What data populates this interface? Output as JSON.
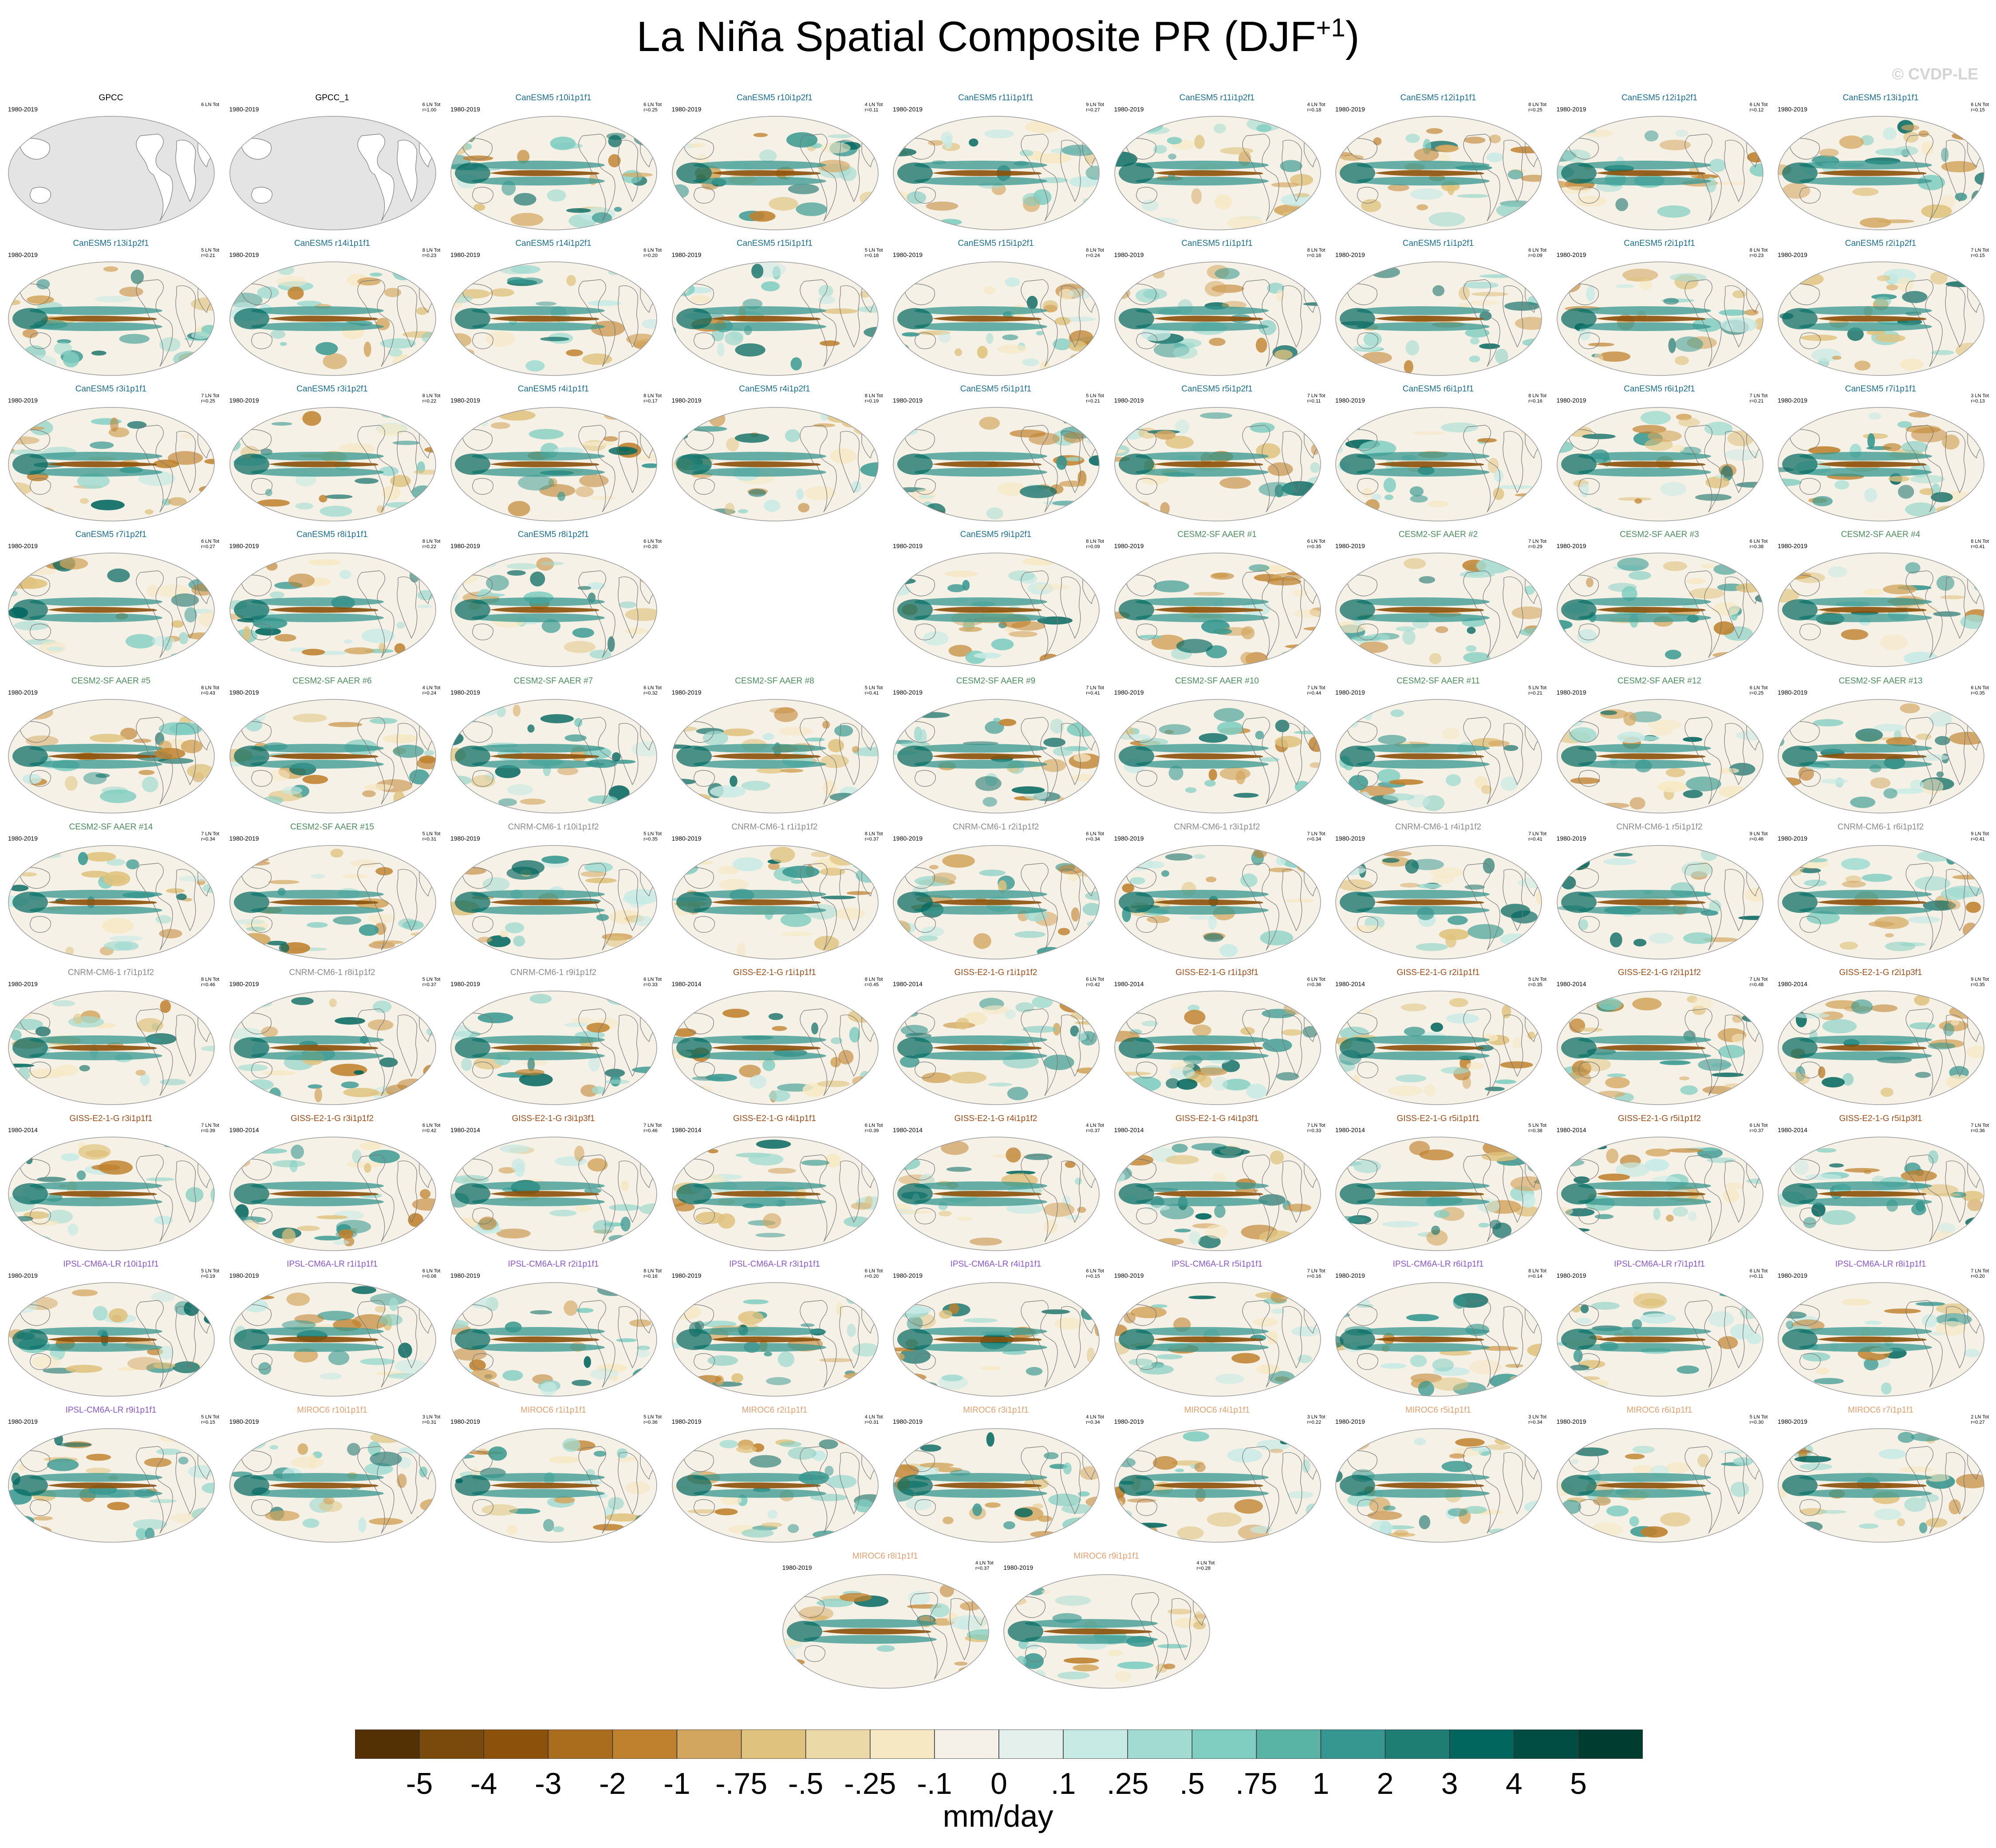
{
  "title": {
    "main": "La Niña Spatial Composite PR (DJF",
    "sup": "+1",
    "close": ")"
  },
  "watermark": "© CVDP-LE",
  "colorbar": {
    "units": "mm/day",
    "labels": [
      "-5",
      "-4",
      "-3",
      "-2",
      "-1",
      "-.75",
      "-.5",
      "-.25",
      "-.1",
      "0",
      ".1",
      ".25",
      ".5",
      ".75",
      "1",
      "2",
      "3",
      "4",
      "5"
    ],
    "colors": [
      "#543005",
      "#7a4a0c",
      "#8c510a",
      "#a96d1d",
      "#bf812d",
      "#d3a65f",
      "#dfc27d",
      "#ecd9a8",
      "#f6e8c3",
      "#f5f1e8",
      "#e3f0ec",
      "#c7eae5",
      "#a2dbd1",
      "#80cdc1",
      "#5ab4a6",
      "#35978f",
      "#1e7e74",
      "#01665e",
      "#014d44",
      "#003c30"
    ]
  },
  "models": {
    "GPCC": "#000000",
    "CanESM5": "#1b6e8e",
    "CESM2-SF AAER": "#4c8c5c",
    "CNRM-CM6-1": "#8a8a8a",
    "GISS-E2-1-G": "#9b4d1a",
    "IPSL-CM6A-LR": "#8a56c8",
    "MIROC6": "#e0a070"
  },
  "panels": [
    {
      "row": 0,
      "col": 0,
      "title": "GPCC",
      "model": "GPCC",
      "years": "1980-2019",
      "events": "6 LN Tot",
      "r": "",
      "obs": true
    },
    {
      "row": 0,
      "col": 1,
      "title": "GPCC_1",
      "model": "GPCC",
      "years": "1980-2019",
      "events": "6 LN Tot",
      "r": "r=1.00",
      "obs": true
    },
    {
      "row": 0,
      "col": 2,
      "title": "CanESM5 r10i1p1f1",
      "model": "CanESM5",
      "years": "1980-2019",
      "events": "6 LN Tot",
      "r": "r=0.25"
    },
    {
      "row": 0,
      "col": 3,
      "title": "CanESM5 r10i1p2f1",
      "model": "CanESM5",
      "years": "1980-2019",
      "events": "4 LN Tot",
      "r": "r=0.11"
    },
    {
      "row": 0,
      "col": 4,
      "title": "CanESM5 r11i1p1f1",
      "model": "CanESM5",
      "years": "1980-2019",
      "events": "9 LN Tot",
      "r": "r=0.27"
    },
    {
      "row": 0,
      "col": 5,
      "title": "CanESM5 r11i1p2f1",
      "model": "CanESM5",
      "years": "1980-2019",
      "events": "4 LN Tot",
      "r": "r=0.18"
    },
    {
      "row": 0,
      "col": 6,
      "title": "CanESM5 r12i1p1f1",
      "model": "CanESM5",
      "years": "1980-2019",
      "events": "8 LN Tot",
      "r": "r=0.25"
    },
    {
      "row": 0,
      "col": 7,
      "title": "CanESM5 r12i1p2f1",
      "model": "CanESM5",
      "years": "1980-2019",
      "events": "6 LN Tot",
      "r": "r=0.12"
    },
    {
      "row": 0,
      "col": 8,
      "title": "CanESM5 r13i1p1f1",
      "model": "CanESM5",
      "years": "1980-2019",
      "events": "6 LN Tot",
      "r": "r=0.15"
    },
    {
      "row": 1,
      "col": 0,
      "title": "CanESM5 r13i1p2f1",
      "model": "CanESM5",
      "years": "1980-2019",
      "events": "5 LN Tot",
      "r": "r=0.21"
    },
    {
      "row": 1,
      "col": 1,
      "title": "CanESM5 r14i1p1f1",
      "model": "CanESM5",
      "years": "1980-2019",
      "events": "8 LN Tot",
      "r": "r=0.23"
    },
    {
      "row": 1,
      "col": 2,
      "title": "CanESM5 r14i1p2f1",
      "model": "CanESM5",
      "years": "1980-2019",
      "events": "6 LN Tot",
      "r": "r=0.20"
    },
    {
      "row": 1,
      "col": 3,
      "title": "CanESM5 r15i1p1f1",
      "model": "CanESM5",
      "years": "1980-2019",
      "events": "5 LN Tot",
      "r": "r=0.18"
    },
    {
      "row": 1,
      "col": 4,
      "title": "CanESM5 r15i1p2f1",
      "model": "CanESM5",
      "years": "1980-2019",
      "events": "8 LN Tot",
      "r": "r=0.24"
    },
    {
      "row": 1,
      "col": 5,
      "title": "CanESM5 r1i1p1f1",
      "model": "CanESM5",
      "years": "1980-2019",
      "events": "8 LN Tot",
      "r": "r=0.16"
    },
    {
      "row": 1,
      "col": 6,
      "title": "CanESM5 r1i1p2f1",
      "model": "CanESM5",
      "years": "1980-2019",
      "events": "6 LN Tot",
      "r": "r=0.09"
    },
    {
      "row": 1,
      "col": 7,
      "title": "CanESM5 r2i1p1f1",
      "model": "CanESM5",
      "years": "1980-2019",
      "events": "8 LN Tot",
      "r": "r=0.23"
    },
    {
      "row": 1,
      "col": 8,
      "title": "CanESM5 r2i1p2f1",
      "model": "CanESM5",
      "years": "1980-2019",
      "events": "7 LN Tot",
      "r": "r=0.15"
    },
    {
      "row": 2,
      "col": 0,
      "title": "CanESM5 r3i1p1f1",
      "model": "CanESM5",
      "years": "1980-2019",
      "events": "7 LN Tot",
      "r": "r=0.25"
    },
    {
      "row": 2,
      "col": 1,
      "title": "CanESM5 r3i1p2f1",
      "model": "CanESM5",
      "years": "1980-2019",
      "events": "8 LN Tot",
      "r": "r=0.22"
    },
    {
      "row": 2,
      "col": 2,
      "title": "CanESM5 r4i1p1f1",
      "model": "CanESM5",
      "years": "1980-2019",
      "events": "8 LN Tot",
      "r": "r=0.17"
    },
    {
      "row": 2,
      "col": 3,
      "title": "CanESM5 r4i1p2f1",
      "model": "CanESM5",
      "years": "1980-2019",
      "events": "8 LN Tot",
      "r": "r=0.19"
    },
    {
      "row": 2,
      "col": 4,
      "title": "CanESM5 r5i1p1f1",
      "model": "CanESM5",
      "years": "1980-2019",
      "events": "5 LN Tot",
      "r": "r=0.21"
    },
    {
      "row": 2,
      "col": 5,
      "title": "CanESM5 r5i1p2f1",
      "model": "CanESM5",
      "years": "1980-2019",
      "events": "7 LN Tot",
      "r": "r=0.11"
    },
    {
      "row": 2,
      "col": 6,
      "title": "CanESM5 r6i1p1f1",
      "model": "CanESM5",
      "years": "1980-2019",
      "events": "8 LN Tot",
      "r": "r=0.16"
    },
    {
      "row": 2,
      "col": 7,
      "title": "CanESM5 r6i1p2f1",
      "model": "CanESM5",
      "years": "1980-2019",
      "events": "7 LN Tot",
      "r": "r=0.21"
    },
    {
      "row": 2,
      "col": 8,
      "title": "CanESM5 r7i1p1f1",
      "model": "CanESM5",
      "years": "1980-2019",
      "events": "3 LN Tot",
      "r": "r=0.13"
    },
    {
      "row": 3,
      "col": 0,
      "title": "CanESM5 r7i1p2f1",
      "model": "CanESM5",
      "years": "1980-2019",
      "events": "6 LN Tot",
      "r": "r=0.27"
    },
    {
      "row": 3,
      "col": 1,
      "title": "CanESM5 r8i1p1f1",
      "model": "CanESM5",
      "years": "1980-2019",
      "events": "8 LN Tot",
      "r": "r=0.22"
    },
    {
      "row": 3,
      "col": 2,
      "title": "CanESM5 r8i1p2f1",
      "model": "CanESM5",
      "years": "1980-2019",
      "events": "6 LN Tot",
      "r": "r=0.20"
    },
    {
      "row": 3,
      "col": 4,
      "title": "CanESM5 r9i1p2f1",
      "model": "CanESM5",
      "years": "1980-2019",
      "events": "8 LN Tot",
      "r": "r=0.09"
    },
    {
      "row": 3,
      "col": 5,
      "title": "CESM2-SF AAER #1",
      "model": "CESM2-SF AAER",
      "years": "1980-2019",
      "events": "6 LN Tot",
      "r": "r=0.35"
    },
    {
      "row": 3,
      "col": 6,
      "title": "CESM2-SF AAER #2",
      "model": "CESM2-SF AAER",
      "years": "1980-2019",
      "events": "7 LN Tot",
      "r": "r=0.29"
    },
    {
      "row": 3,
      "col": 7,
      "title": "CESM2-SF AAER #3",
      "model": "CESM2-SF AAER",
      "years": "1980-2019",
      "events": "6 LN Tot",
      "r": "r=0.38"
    },
    {
      "row": 3,
      "col": 8,
      "title": "CESM2-SF AAER #4",
      "model": "CESM2-SF AAER",
      "years": "1980-2019",
      "events": "8 LN Tot",
      "r": "r=0.41"
    },
    {
      "row": 4,
      "col": 0,
      "title": "CESM2-SF AAER #5",
      "model": "CESM2-SF AAER",
      "years": "1980-2019",
      "events": "8 LN Tot",
      "r": "r=0.43"
    },
    {
      "row": 4,
      "col": 1,
      "title": "CESM2-SF AAER #6",
      "model": "CESM2-SF AAER",
      "years": "1980-2019",
      "events": "4 LN Tot",
      "r": "r=0.24"
    },
    {
      "row": 4,
      "col": 2,
      "title": "CESM2-SF AAER #7",
      "model": "CESM2-SF AAER",
      "years": "1980-2019",
      "events": "6 LN Tot",
      "r": "r=0.32"
    },
    {
      "row": 4,
      "col": 3,
      "title": "CESM2-SF AAER #8",
      "model": "CESM2-SF AAER",
      "years": "1980-2019",
      "events": "5 LN Tot",
      "r": "r=0.41"
    },
    {
      "row": 4,
      "col": 4,
      "title": "CESM2-SF AAER #9",
      "model": "CESM2-SF AAER",
      "years": "1980-2019",
      "events": "7 LN Tot",
      "r": "r=0.41"
    },
    {
      "row": 4,
      "col": 5,
      "title": "CESM2-SF AAER #10",
      "model": "CESM2-SF AAER",
      "years": "1980-2019",
      "events": "7 LN Tot",
      "r": "r=0.44"
    },
    {
      "row": 4,
      "col": 6,
      "title": "CESM2-SF AAER #11",
      "model": "CESM2-SF AAER",
      "years": "1980-2019",
      "events": "5 LN Tot",
      "r": "r=0.21"
    },
    {
      "row": 4,
      "col": 7,
      "title": "CESM2-SF AAER #12",
      "model": "CESM2-SF AAER",
      "years": "1980-2019",
      "events": "6 LN Tot",
      "r": "r=0.25"
    },
    {
      "row": 4,
      "col": 8,
      "title": "CESM2-SF AAER #13",
      "model": "CESM2-SF AAER",
      "years": "1980-2019",
      "events": "6 LN Tot",
      "r": "r=0.35"
    },
    {
      "row": 5,
      "col": 0,
      "title": "CESM2-SF AAER #14",
      "model": "CESM2-SF AAER",
      "years": "1980-2019",
      "events": "7 LN Tot",
      "r": "r=0.34"
    },
    {
      "row": 5,
      "col": 1,
      "title": "CESM2-SF AAER #15",
      "model": "CESM2-SF AAER",
      "years": "1980-2019",
      "events": "5 LN Tot",
      "r": "r=0.31"
    },
    {
      "row": 5,
      "col": 2,
      "title": "CNRM-CM6-1 r10i1p1f2",
      "model": "CNRM-CM6-1",
      "years": "1980-2019",
      "events": "5 LN Tot",
      "r": "r=0.35"
    },
    {
      "row": 5,
      "col": 3,
      "title": "CNRM-CM6-1 r1i1p1f2",
      "model": "CNRM-CM6-1",
      "years": "1980-2019",
      "events": "8 LN Tot",
      "r": "r=0.37"
    },
    {
      "row": 5,
      "col": 4,
      "title": "CNRM-CM6-1 r2i1p1f2",
      "model": "CNRM-CM6-1",
      "years": "1980-2019",
      "events": "6 LN Tot",
      "r": "r=0.34"
    },
    {
      "row": 5,
      "col": 5,
      "title": "CNRM-CM6-1 r3i1p1f2",
      "model": "CNRM-CM6-1",
      "years": "1980-2019",
      "events": "7 LN Tot",
      "r": "r=0.34"
    },
    {
      "row": 5,
      "col": 6,
      "title": "CNRM-CM6-1 r4i1p1f2",
      "model": "CNRM-CM6-1",
      "years": "1980-2019",
      "events": "7 LN Tot",
      "r": "r=0.41"
    },
    {
      "row": 5,
      "col": 7,
      "title": "CNRM-CM6-1 r5i1p1f2",
      "model": "CNRM-CM6-1",
      "years": "1980-2019",
      "events": "9 LN Tot",
      "r": "r=0.46"
    },
    {
      "row": 5,
      "col": 8,
      "title": "CNRM-CM6-1 r6i1p1f2",
      "model": "CNRM-CM6-1",
      "years": "1980-2019",
      "events": "9 LN Tot",
      "r": "r=0.41"
    },
    {
      "row": 6,
      "col": 0,
      "title": "CNRM-CM6-1 r7i1p1f2",
      "model": "CNRM-CM6-1",
      "years": "1980-2019",
      "events": "8 LN Tot",
      "r": "r=0.46"
    },
    {
      "row": 6,
      "col": 1,
      "title": "CNRM-CM6-1 r8i1p1f2",
      "model": "CNRM-CM6-1",
      "years": "1980-2019",
      "events": "5 LN Tot",
      "r": "r=0.37"
    },
    {
      "row": 6,
      "col": 2,
      "title": "CNRM-CM6-1 r9i1p1f2",
      "model": "CNRM-CM6-1",
      "years": "1980-2019",
      "events": "6 LN Tot",
      "r": "r=0.33"
    },
    {
      "row": 6,
      "col": 3,
      "title": "GISS-E2-1-G r1i1p1f1",
      "model": "GISS-E2-1-G",
      "years": "1980-2014",
      "events": "8 LN Tot",
      "r": "r=0.45"
    },
    {
      "row": 6,
      "col": 4,
      "title": "GISS-E2-1-G r1i1p1f2",
      "model": "GISS-E2-1-G",
      "years": "1980-2014",
      "events": "6 LN Tot",
      "r": "r=0.42"
    },
    {
      "row": 6,
      "col": 5,
      "title": "GISS-E2-1-G r1i1p3f1",
      "model": "GISS-E2-1-G",
      "years": "1980-2014",
      "events": "6 LN Tot",
      "r": "r=0.36"
    },
    {
      "row": 6,
      "col": 6,
      "title": "GISS-E2-1-G r2i1p1f1",
      "model": "GISS-E2-1-G",
      "years": "1980-2014",
      "events": "5 LN Tot",
      "r": "r=0.35"
    },
    {
      "row": 6,
      "col": 7,
      "title": "GISS-E2-1-G r2i1p1f2",
      "model": "GISS-E2-1-G",
      "years": "1980-2014",
      "events": "7 LN Tot",
      "r": "r=0.48"
    },
    {
      "row": 6,
      "col": 8,
      "title": "GISS-E2-1-G r2i1p3f1",
      "model": "GISS-E2-1-G",
      "years": "1980-2014",
      "events": "9 LN Tot",
      "r": "r=0.35"
    },
    {
      "row": 7,
      "col": 0,
      "title": "GISS-E2-1-G r3i1p1f1",
      "model": "GISS-E2-1-G",
      "years": "1980-2014",
      "events": "7 LN Tot",
      "r": "r=0.39"
    },
    {
      "row": 7,
      "col": 1,
      "title": "GISS-E2-1-G r3i1p1f2",
      "model": "GISS-E2-1-G",
      "years": "1980-2014",
      "events": "6 LN Tot",
      "r": "r=0.42"
    },
    {
      "row": 7,
      "col": 2,
      "title": "GISS-E2-1-G r3i1p3f1",
      "model": "GISS-E2-1-G",
      "years": "1980-2014",
      "events": "7 LN Tot",
      "r": "r=0.46"
    },
    {
      "row": 7,
      "col": 3,
      "title": "GISS-E2-1-G r4i1p1f1",
      "model": "GISS-E2-1-G",
      "years": "1980-2014",
      "events": "6 LN Tot",
      "r": "r=0.39"
    },
    {
      "row": 7,
      "col": 4,
      "title": "GISS-E2-1-G r4i1p1f2",
      "model": "GISS-E2-1-G",
      "years": "1980-2014",
      "events": "4 LN Tot",
      "r": "r=0.37"
    },
    {
      "row": 7,
      "col": 5,
      "title": "GISS-E2-1-G r4i1p3f1",
      "model": "GISS-E2-1-G",
      "years": "1980-2014",
      "events": "7 LN Tot",
      "r": "r=0.33"
    },
    {
      "row": 7,
      "col": 6,
      "title": "GISS-E2-1-G r5i1p1f1",
      "model": "GISS-E2-1-G",
      "years": "1980-2014",
      "events": "5 LN Tot",
      "r": "r=0.38"
    },
    {
      "row": 7,
      "col": 7,
      "title": "GISS-E2-1-G r5i1p1f2",
      "model": "GISS-E2-1-G",
      "years": "1980-2014",
      "events": "6 LN Tot",
      "r": "r=0.37"
    },
    {
      "row": 7,
      "col": 8,
      "title": "GISS-E2-1-G r5i1p3f1",
      "model": "GISS-E2-1-G",
      "years": "1980-2014",
      "events": "7 LN Tot",
      "r": "r=0.36"
    },
    {
      "row": 8,
      "col": 0,
      "title": "IPSL-CM6A-LR r10i1p1f1",
      "model": "IPSL-CM6A-LR",
      "years": "1980-2019",
      "events": "5 LN Tot",
      "r": "r=0.19"
    },
    {
      "row": 8,
      "col": 1,
      "title": "IPSL-CM6A-LR r1i1p1f1",
      "model": "IPSL-CM6A-LR",
      "years": "1980-2019",
      "events": "6 LN Tot",
      "r": "r=0.08"
    },
    {
      "row": 8,
      "col": 2,
      "title": "IPSL-CM6A-LR r2i1p1f1",
      "model": "IPSL-CM6A-LR",
      "years": "1980-2019",
      "events": "8 LN Tot",
      "r": "r=0.16"
    },
    {
      "row": 8,
      "col": 3,
      "title": "IPSL-CM6A-LR r3i1p1f1",
      "model": "IPSL-CM6A-LR",
      "years": "1980-2019",
      "events": "6 LN Tot",
      "r": "r=0.20"
    },
    {
      "row": 8,
      "col": 4,
      "title": "IPSL-CM6A-LR r4i1p1f1",
      "model": "IPSL-CM6A-LR",
      "years": "1980-2019",
      "events": "6 LN Tot",
      "r": "r=0.15"
    },
    {
      "row": 8,
      "col": 5,
      "title": "IPSL-CM6A-LR r5i1p1f1",
      "model": "IPSL-CM6A-LR",
      "years": "1980-2019",
      "events": "7 LN Tot",
      "r": "r=0.16"
    },
    {
      "row": 8,
      "col": 6,
      "title": "IPSL-CM6A-LR r6i1p1f1",
      "model": "IPSL-CM6A-LR",
      "years": "1980-2019",
      "events": "8 LN Tot",
      "r": "r=0.14"
    },
    {
      "row": 8,
      "col": 7,
      "title": "IPSL-CM6A-LR r7i1p1f1",
      "model": "IPSL-CM6A-LR",
      "years": "1980-2019",
      "events": "6 LN Tot",
      "r": "r=0.11"
    },
    {
      "row": 8,
      "col": 8,
      "title": "IPSL-CM6A-LR r8i1p1f1",
      "model": "IPSL-CM6A-LR",
      "years": "1980-2019",
      "events": "7 LN Tot",
      "r": "r=0.20"
    },
    {
      "row": 9,
      "col": 0,
      "title": "IPSL-CM6A-LR r9i1p1f1",
      "model": "IPSL-CM6A-LR",
      "years": "1980-2019",
      "events": "5 LN Tot",
      "r": "r=0.15"
    },
    {
      "row": 9,
      "col": 1,
      "title": "MIROC6 r10i1p1f1",
      "model": "MIROC6",
      "years": "1980-2019",
      "events": "3 LN Tot",
      "r": "r=0.31"
    },
    {
      "row": 9,
      "col": 2,
      "title": "MIROC6 r1i1p1f1",
      "model": "MIROC6",
      "years": "1980-2019",
      "events": "5 LN Tot",
      "r": "r=0.36"
    },
    {
      "row": 9,
      "col": 3,
      "title": "MIROC6 r2i1p1f1",
      "model": "MIROC6",
      "years": "1980-2019",
      "events": "4 LN Tot",
      "r": "r=0.31"
    },
    {
      "row": 9,
      "col": 4,
      "title": "MIROC6 r3i1p1f1",
      "model": "MIROC6",
      "years": "1980-2019",
      "events": "4 LN Tot",
      "r": "r=0.34"
    },
    {
      "row": 9,
      "col": 5,
      "title": "MIROC6 r4i1p1f1",
      "model": "MIROC6",
      "years": "1980-2019",
      "events": "3 LN Tot",
      "r": "r=0.22"
    },
    {
      "row": 9,
      "col": 6,
      "title": "MIROC6 r5i1p1f1",
      "model": "MIROC6",
      "years": "1980-2019",
      "events": "3 LN Tot",
      "r": "r=0.34"
    },
    {
      "row": 9,
      "col": 7,
      "title": "MIROC6 r6i1p1f1",
      "model": "MIROC6",
      "years": "1980-2019",
      "events": "5 LN Tot",
      "r": "r=0.30"
    },
    {
      "row": 9,
      "col": 8,
      "title": "MIROC6 r7i1p1f1",
      "model": "MIROC6",
      "years": "1980-2019",
      "events": "2 LN Tot",
      "r": "r=0.27"
    },
    {
      "row": 10,
      "col": 3.5,
      "title": "MIROC6 r8i1p1f1",
      "model": "MIROC6",
      "years": "1980-2019",
      "events": "4 LN Tot",
      "r": "r=0.37"
    },
    {
      "row": 10,
      "col": 4.5,
      "title": "MIROC6 r9i1p1f1",
      "model": "MIROC6",
      "years": "1980-2019",
      "events": "4 LN Tot",
      "r": "r=0.28"
    }
  ]
}
